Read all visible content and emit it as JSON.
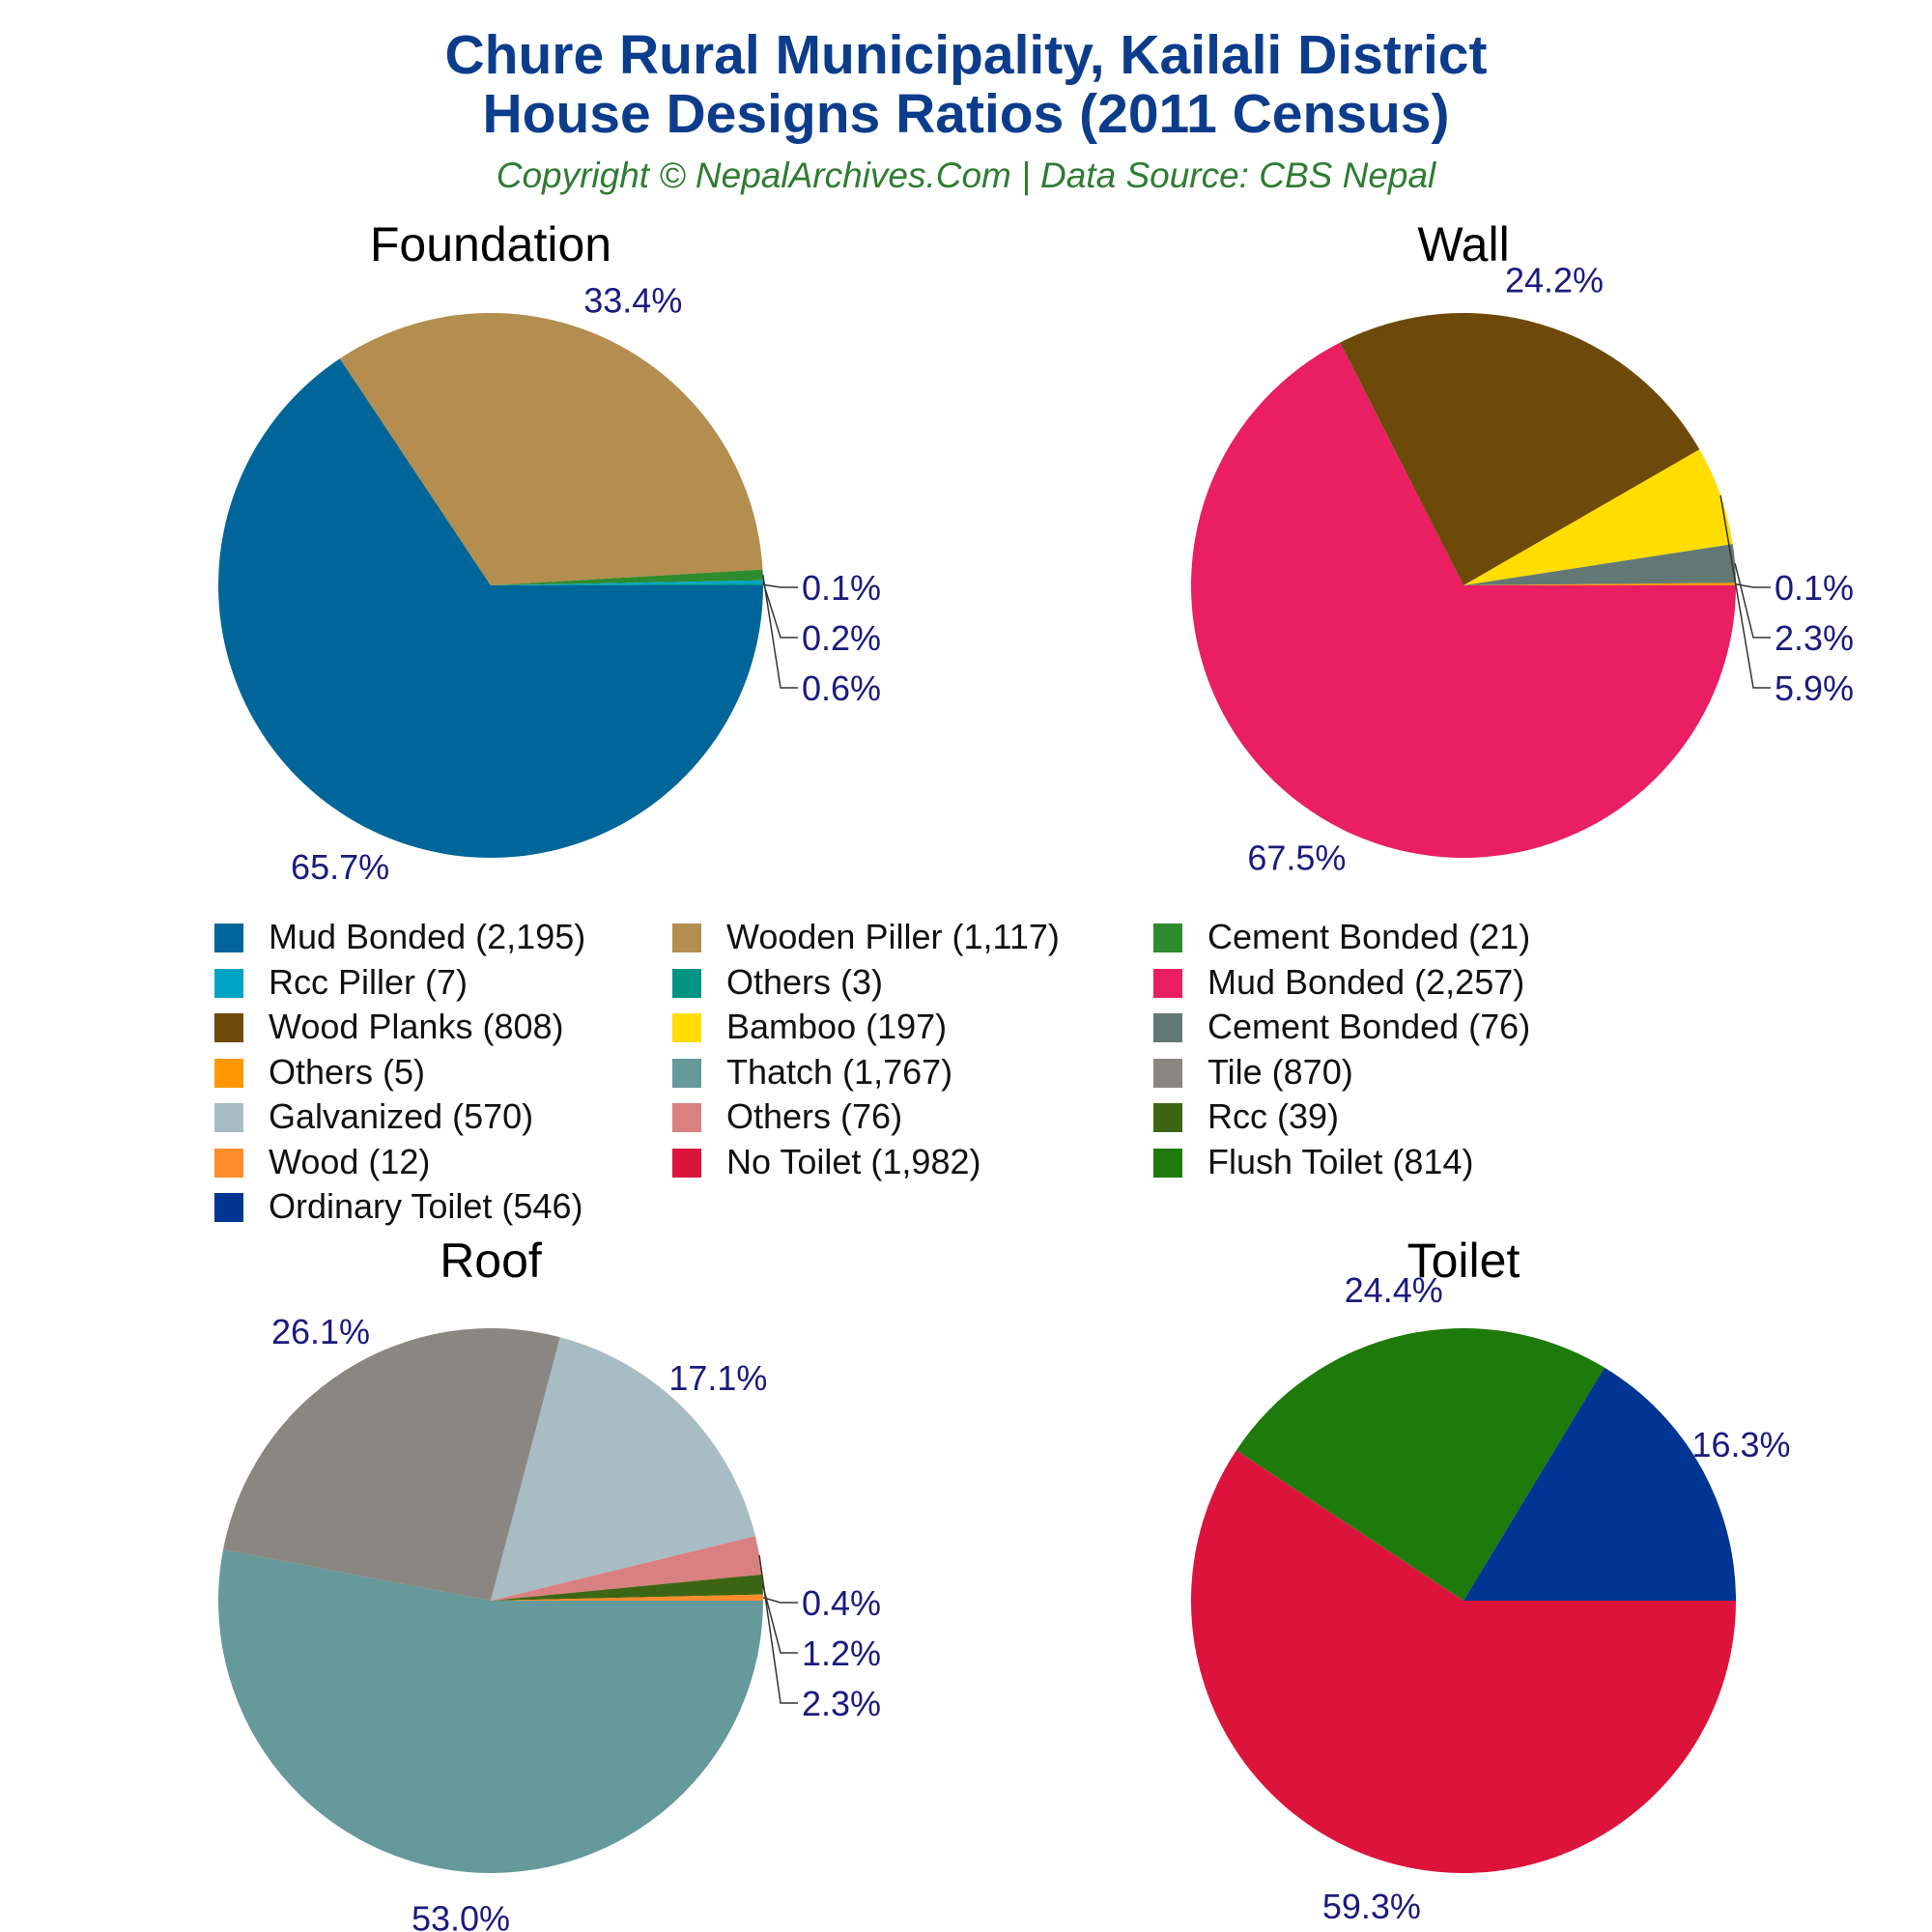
{
  "header": {
    "title_line1": "Chure Rural Municipality, Kailali District",
    "title_line2": "House Designs Ratios (2011 Census)",
    "subtitle": "Copyright © NepalArchives.Com | Data Source: CBS Nepal"
  },
  "chart_data": [
    {
      "type": "pie",
      "title": "Foundation",
      "labels": [
        "Mud Bonded",
        "Wooden Piller",
        "Cement Bonded",
        "Rcc Piller",
        "Others"
      ],
      "values": [
        2195,
        1117,
        21,
        7,
        3
      ],
      "percent_labels": [
        "65.7%",
        "33.4%",
        "0.6%",
        "0.2%",
        "0.1%"
      ],
      "colors": [
        "#006699",
        "#b38e50",
        "#2e8b2e",
        "#00a5c6",
        "#009482"
      ]
    },
    {
      "type": "pie",
      "title": "Wall",
      "labels": [
        "Mud Bonded",
        "Wood Planks",
        "Bamboo",
        "Cement Bonded",
        "Others"
      ],
      "values": [
        2257,
        808,
        197,
        76,
        5
      ],
      "percent_labels": [
        "67.5%",
        "24.2%",
        "5.9%",
        "2.3%",
        "0.1%"
      ],
      "colors": [
        "#e91e63",
        "#6e4a0a",
        "#ffdd00",
        "#627874",
        "#ff9800"
      ]
    },
    {
      "type": "pie",
      "title": "Roof",
      "labels": [
        "Thatch",
        "Tile",
        "Galvanized",
        "Others",
        "Rcc",
        "Wood"
      ],
      "values": [
        1767,
        870,
        570,
        76,
        39,
        12
      ],
      "percent_labels": [
        "53.0%",
        "26.1%",
        "17.1%",
        "2.3%",
        "1.2%",
        "0.4%"
      ],
      "colors": [
        "#669999",
        "#8a8682",
        "#a8bcc4",
        "#d98080",
        "#3d6614",
        "#ff8c2a"
      ]
    },
    {
      "type": "pie",
      "title": "Toilet",
      "labels": [
        "No Toilet",
        "Flush Toilet",
        "Ordinary Toilet"
      ],
      "values": [
        1982,
        814,
        546
      ],
      "percent_labels": [
        "59.3%",
        "24.4%",
        "16.3%"
      ],
      "colors": [
        "#dc143c",
        "#1e7a0a",
        "#003593"
      ]
    }
  ],
  "legend": [
    {
      "label": "Mud Bonded (2,195)",
      "color": "#006699"
    },
    {
      "label": "Wooden Piller (1,117)",
      "color": "#b38e50"
    },
    {
      "label": "Cement Bonded (21)",
      "color": "#2e8b2e"
    },
    {
      "label": "Rcc Piller (7)",
      "color": "#00a5c6"
    },
    {
      "label": "Others (3)",
      "color": "#009482"
    },
    {
      "label": "Mud Bonded (2,257)",
      "color": "#e91e63"
    },
    {
      "label": "Wood Planks (808)",
      "color": "#6e4a0a"
    },
    {
      "label": "Bamboo (197)",
      "color": "#ffdd00"
    },
    {
      "label": "Cement Bonded (76)",
      "color": "#627874"
    },
    {
      "label": "Others (5)",
      "color": "#ff9800"
    },
    {
      "label": "Thatch (1,767)",
      "color": "#669999"
    },
    {
      "label": "Tile (870)",
      "color": "#8a8682"
    },
    {
      "label": "Galvanized (570)",
      "color": "#a8bcc4"
    },
    {
      "label": "Others (76)",
      "color": "#d98080"
    },
    {
      "label": "Rcc (39)",
      "color": "#3d6614"
    },
    {
      "label": "Wood (12)",
      "color": "#ff8c2a"
    },
    {
      "label": "No Toilet (1,982)",
      "color": "#dc143c"
    },
    {
      "label": "Flush Toilet (814)",
      "color": "#1e7a0a"
    },
    {
      "label": "Ordinary Toilet (546)",
      "color": "#003593"
    }
  ]
}
